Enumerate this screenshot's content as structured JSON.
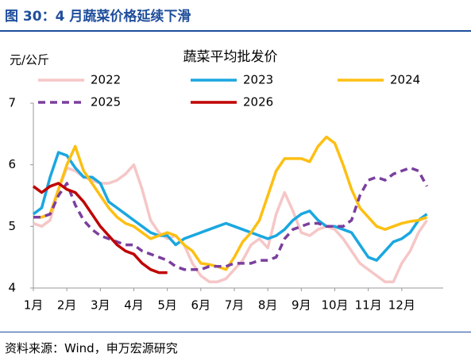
{
  "header": {
    "title": "图 30：4 月蔬菜价格延续下滑"
  },
  "footer": {
    "source": "资料来源：Wind，申万宏源研究"
  },
  "chart_data": {
    "type": "line",
    "title": "蔬菜平均批发价",
    "y_label": "元/公斤",
    "categories": [
      "1月",
      null,
      null,
      null,
      "2月",
      null,
      null,
      null,
      "3月",
      null,
      null,
      null,
      "4月",
      null,
      null,
      null,
      "5月",
      null,
      null,
      null,
      "6月",
      null,
      null,
      null,
      "7月",
      null,
      null,
      null,
      "8月",
      null,
      null,
      null,
      "9月",
      null,
      null,
      null,
      "10月",
      null,
      null,
      null,
      "11月",
      null,
      null,
      null,
      "12月",
      null,
      null,
      null
    ],
    "ylim": [
      4,
      7
    ],
    "yticks": [
      4,
      5,
      6,
      7
    ],
    "series": [
      {
        "name": "2022",
        "color": "#f6c6c6",
        "values": [
          5.05,
          5.0,
          5.1,
          5.6,
          5.95,
          5.9,
          5.8,
          5.75,
          5.7,
          5.7,
          5.75,
          5.85,
          6.0,
          5.6,
          5.1,
          4.9,
          4.8,
          4.85,
          4.7,
          4.4,
          4.2,
          4.1,
          4.1,
          4.15,
          4.3,
          4.45,
          4.7,
          4.8,
          4.65,
          5.2,
          5.55,
          5.25,
          4.9,
          4.85,
          4.95,
          5.0,
          4.95,
          4.8,
          4.6,
          4.4,
          4.3,
          4.2,
          4.1,
          4.1,
          4.4,
          4.6,
          4.9,
          5.1
        ]
      },
      {
        "name": "2023",
        "color": "#1aa7e0",
        "values": [
          5.2,
          5.3,
          5.8,
          6.2,
          6.15,
          5.95,
          5.8,
          5.8,
          5.7,
          5.4,
          5.3,
          5.2,
          5.1,
          5.0,
          4.9,
          4.85,
          4.85,
          4.7,
          4.8,
          4.85,
          4.9,
          4.95,
          5.0,
          5.05,
          5.0,
          4.95,
          4.9,
          4.85,
          4.8,
          4.85,
          4.95,
          5.1,
          5.2,
          5.25,
          5.1,
          5.0,
          5.0,
          4.95,
          4.9,
          4.7,
          4.5,
          4.45,
          4.6,
          4.75,
          4.8,
          4.9,
          5.1,
          5.2
        ]
      },
      {
        "name": "2024",
        "color": "#fdbf12",
        "values": [
          5.15,
          5.15,
          5.2,
          5.6,
          6.0,
          6.3,
          5.9,
          5.7,
          5.5,
          5.3,
          5.15,
          5.05,
          5.0,
          4.9,
          4.8,
          4.85,
          4.9,
          4.85,
          4.7,
          4.6,
          4.4,
          4.38,
          4.35,
          4.3,
          4.5,
          4.75,
          4.9,
          5.1,
          5.5,
          5.9,
          6.1,
          6.1,
          6.1,
          6.05,
          6.3,
          6.45,
          6.35,
          6.0,
          5.6,
          5.3,
          5.15,
          5.0,
          4.95,
          5.0,
          5.05,
          5.08,
          5.1,
          5.15
        ]
      },
      {
        "name": "2025",
        "color": "#7b3f9e",
        "line_style": "dashed",
        "values": [
          5.15,
          5.15,
          5.2,
          5.5,
          5.7,
          5.35,
          5.1,
          4.95,
          4.85,
          4.8,
          4.75,
          4.7,
          4.7,
          4.6,
          4.55,
          4.5,
          4.45,
          4.35,
          4.3,
          4.3,
          4.3,
          4.35,
          4.35,
          4.35,
          4.4,
          4.4,
          4.4,
          4.45,
          4.45,
          4.5,
          4.8,
          4.95,
          5.0,
          5.05,
          5.05,
          5.0,
          5.0,
          5.0,
          5.1,
          5.5,
          5.75,
          5.8,
          5.75,
          5.85,
          5.9,
          5.95,
          5.9,
          5.65
        ]
      },
      {
        "name": "2026",
        "color": "#c00000",
        "values": [
          5.65,
          5.55,
          5.65,
          5.7,
          5.6,
          5.55,
          5.4,
          5.2,
          5.0,
          4.85,
          4.7,
          4.6,
          4.55,
          4.4,
          4.3,
          4.25,
          4.25,
          null,
          null,
          null,
          null,
          null,
          null,
          null,
          null,
          null,
          null,
          null,
          null,
          null,
          null,
          null,
          null,
          null,
          null,
          null,
          null,
          null,
          null,
          null,
          null,
          null,
          null,
          null,
          null,
          null,
          null,
          null
        ]
      }
    ]
  }
}
